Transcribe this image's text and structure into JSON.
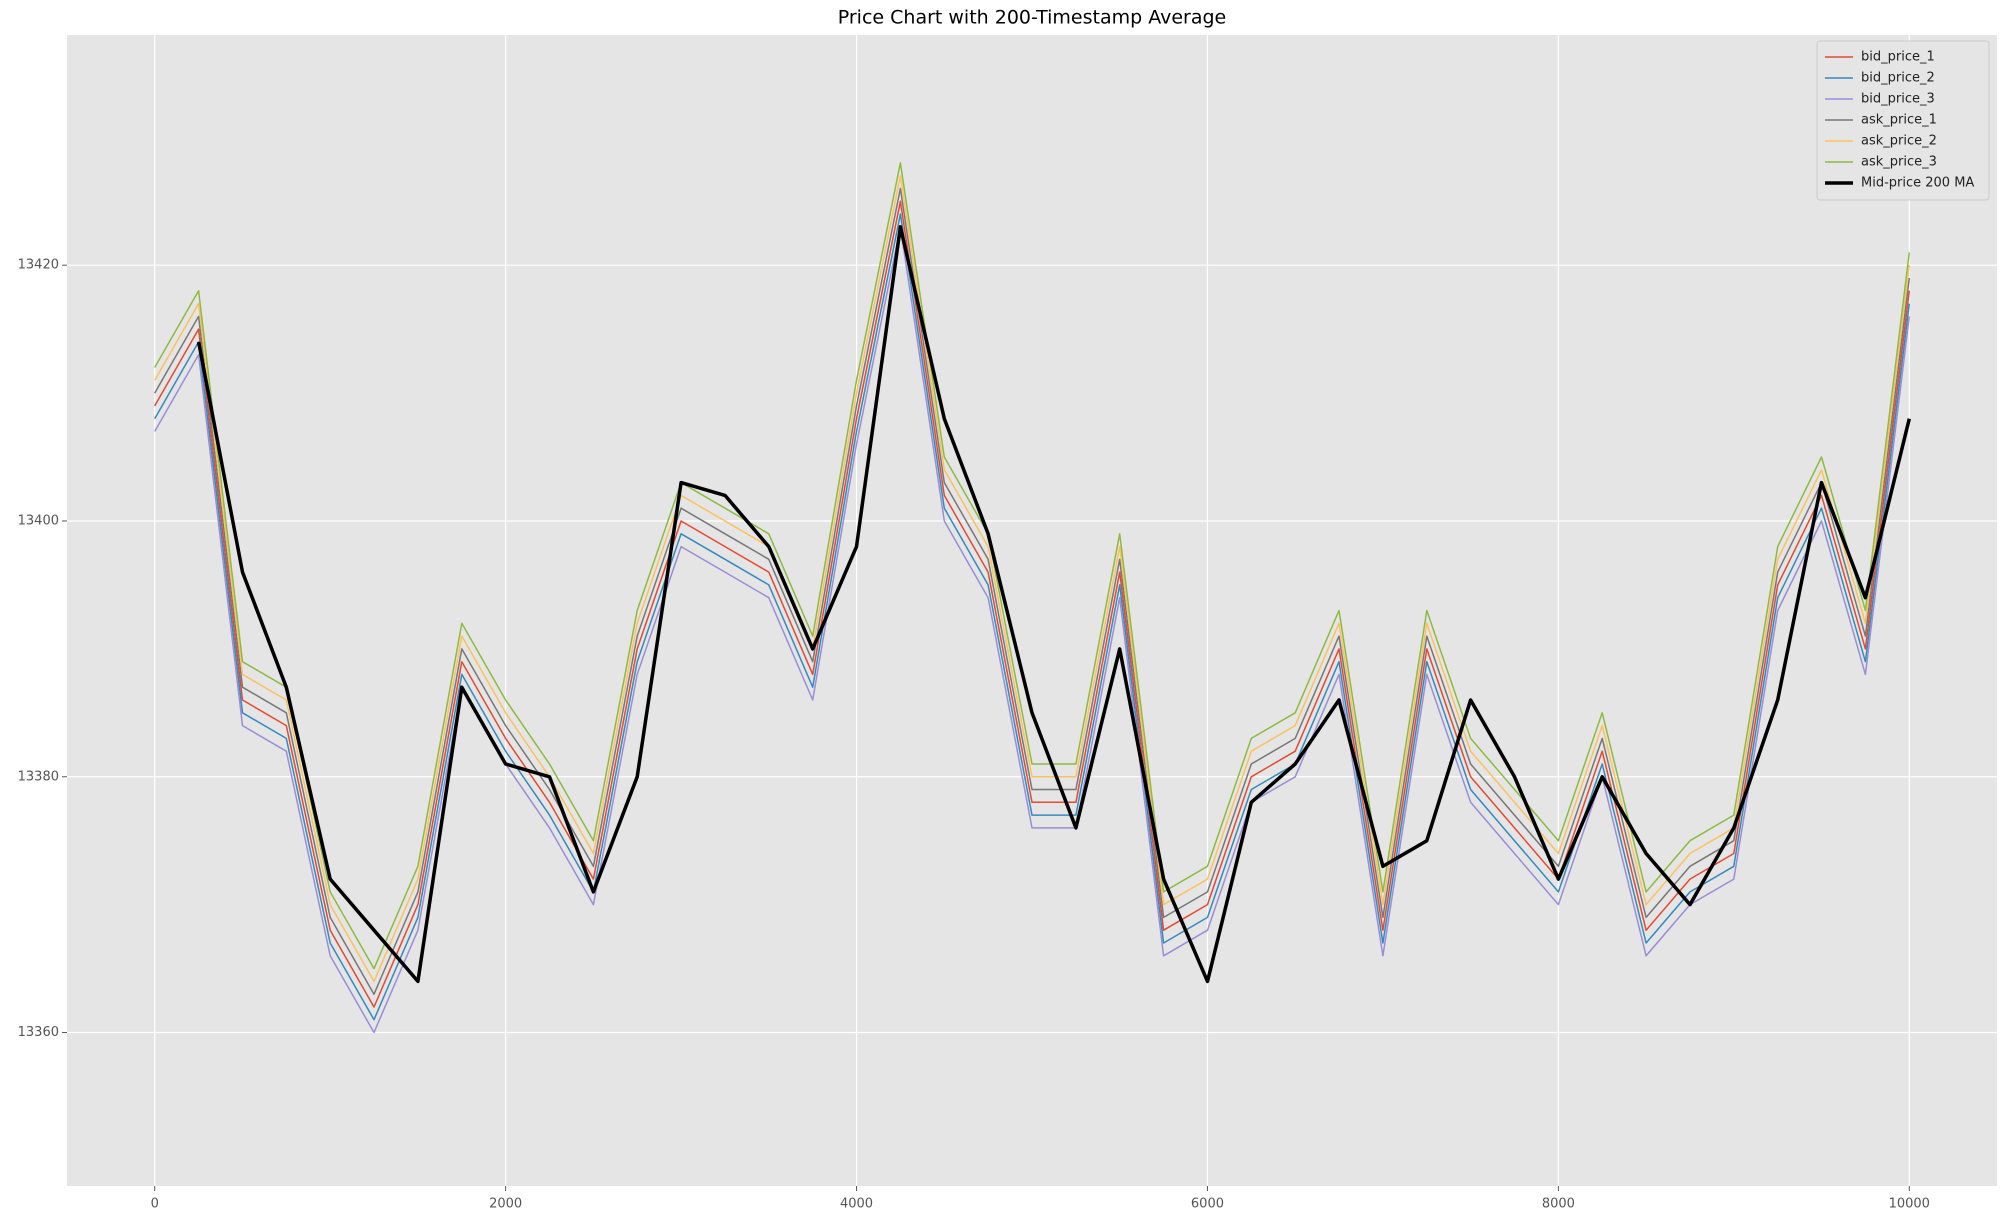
{
  "chart_data": {
    "type": "line",
    "title": "Price Chart with 200-Timestamp Average",
    "x": [
      0,
      250,
      500,
      750,
      1000,
      1250,
      1500,
      1750,
      2000,
      2250,
      2500,
      2750,
      3000,
      3250,
      3500,
      3750,
      4000,
      4250,
      4500,
      4750,
      5000,
      5250,
      5500,
      5750,
      6000,
      6250,
      6500,
      6750,
      7000,
      7250,
      7500,
      7750,
      8000,
      8250,
      8500,
      8750,
      9000,
      9250,
      9500,
      9750,
      10000
    ],
    "series": [
      {
        "name": "bid_price_1",
        "color": "#E24A33",
        "width": 1.5,
        "values": [
          13409,
          13415,
          13386,
          13384,
          13368,
          13362,
          13370,
          13389,
          13383,
          13378,
          13372,
          13390,
          13400,
          13398,
          13396,
          13388,
          13408,
          13425,
          13402,
          13396,
          13378,
          13378,
          13396,
          13368,
          13370,
          13380,
          13382,
          13390,
          13368,
          13390,
          13380,
          13376,
          13372,
          13382,
          13368,
          13372,
          13374,
          13395,
          13402,
          13390,
          13418
        ]
      },
      {
        "name": "bid_price_2",
        "color": "#348ABD",
        "width": 1.5,
        "values": [
          13408,
          13414,
          13385,
          13383,
          13367,
          13361,
          13369,
          13388,
          13382,
          13377,
          13371,
          13389,
          13399,
          13397,
          13395,
          13387,
          13407,
          13424,
          13401,
          13395,
          13377,
          13377,
          13395,
          13367,
          13369,
          13379,
          13381,
          13389,
          13367,
          13389,
          13379,
          13375,
          13371,
          13381,
          13367,
          13371,
          13373,
          13394,
          13401,
          13389,
          13417
        ]
      },
      {
        "name": "bid_price_3",
        "color": "#988ED5",
        "width": 1.5,
        "values": [
          13407,
          13413,
          13384,
          13382,
          13366,
          13360,
          13368,
          13387,
          13381,
          13376,
          13370,
          13388,
          13398,
          13396,
          13394,
          13386,
          13406,
          13423,
          13400,
          13394,
          13376,
          13376,
          13394,
          13366,
          13368,
          13378,
          13380,
          13388,
          13366,
          13388,
          13378,
          13374,
          13370,
          13380,
          13366,
          13370,
          13372,
          13393,
          13400,
          13388,
          13416
        ]
      },
      {
        "name": "ask_price_1",
        "color": "#777777",
        "width": 1.5,
        "values": [
          13410,
          13416,
          13387,
          13385,
          13369,
          13363,
          13371,
          13390,
          13384,
          13379,
          13373,
          13391,
          13401,
          13399,
          13397,
          13389,
          13409,
          13426,
          13403,
          13397,
          13379,
          13379,
          13397,
          13369,
          13371,
          13381,
          13383,
          13391,
          13369,
          13391,
          13381,
          13377,
          13373,
          13383,
          13369,
          13373,
          13375,
          13396,
          13403,
          13391,
          13419
        ]
      },
      {
        "name": "ask_price_2",
        "color": "#FBC15E",
        "width": 1.5,
        "values": [
          13411,
          13417,
          13388,
          13386,
          13370,
          13364,
          13372,
          13391,
          13385,
          13380,
          13374,
          13392,
          13402,
          13400,
          13398,
          13390,
          13410,
          13427,
          13404,
          13398,
          13380,
          13380,
          13398,
          13370,
          13372,
          13382,
          13384,
          13392,
          13370,
          13392,
          13382,
          13378,
          13374,
          13384,
          13370,
          13374,
          13376,
          13397,
          13404,
          13392,
          13420
        ]
      },
      {
        "name": "ask_price_3",
        "color": "#8EBA42",
        "width": 1.5,
        "values": [
          13412,
          13418,
          13389,
          13387,
          13371,
          13365,
          13373,
          13392,
          13386,
          13381,
          13375,
          13393,
          13403,
          13401,
          13399,
          13391,
          13411,
          13428,
          13405,
          13399,
          13381,
          13381,
          13399,
          13371,
          13373,
          13383,
          13385,
          13393,
          13371,
          13393,
          13383,
          13379,
          13375,
          13385,
          13371,
          13375,
          13377,
          13398,
          13405,
          13393,
          13421
        ]
      },
      {
        "name": "Mid-price 200 MA",
        "color": "#000000",
        "width": 3.5,
        "values": [
          null,
          13414,
          13396,
          13387,
          13372,
          13368,
          13364,
          13387,
          13381,
          13380,
          13371,
          13380,
          13403,
          13402,
          13398,
          13390,
          13398,
          13423,
          13408,
          13399,
          13385,
          13376,
          13390,
          13372,
          13364,
          13378,
          13381,
          13386,
          13373,
          13375,
          13386,
          13380,
          13372,
          13380,
          13374,
          13370,
          13376,
          13386,
          13403,
          13394,
          13408
        ]
      }
    ],
    "xlim": [
      -500,
      10500
    ],
    "ylim": [
      13348,
      13438
    ],
    "xticks": [
      0,
      2000,
      4000,
      6000,
      8000,
      10000
    ],
    "yticks": [
      13360,
      13380,
      13400,
      13420
    ],
    "grid": true,
    "legend": "upper right"
  }
}
